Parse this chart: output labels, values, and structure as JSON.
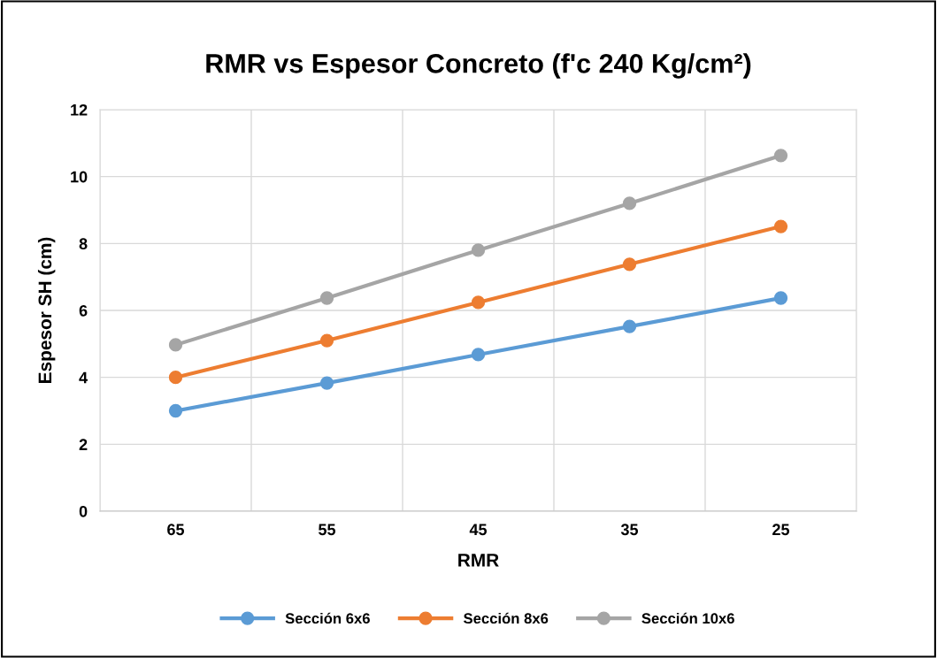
{
  "chart_data": {
    "type": "line",
    "title": "RMR vs Espesor Concreto (f'c 240 Kg/cm²)",
    "xlabel": "RMR",
    "ylabel": "Espesor SH (cm)",
    "categories": [
      "65",
      "55",
      "45",
      "35",
      "25"
    ],
    "series": [
      {
        "name": "Sección 6x6",
        "color": "#5b9bd5",
        "values": [
          3.0,
          3.83,
          4.68,
          5.52,
          6.37
        ]
      },
      {
        "name": "Sección 8x6",
        "color": "#ed7d31",
        "values": [
          4.0,
          5.1,
          6.24,
          7.38,
          8.51
        ]
      },
      {
        "name": "Sección 10x6",
        "color": "#a5a5a5",
        "values": [
          4.97,
          6.37,
          7.8,
          9.2,
          10.63
        ]
      }
    ],
    "ylim": [
      0,
      12
    ],
    "yticks": [
      0,
      2,
      4,
      6,
      8,
      10,
      12
    ],
    "grid": true,
    "legend": "bottom",
    "marker": "circle",
    "line_style": "solid"
  }
}
